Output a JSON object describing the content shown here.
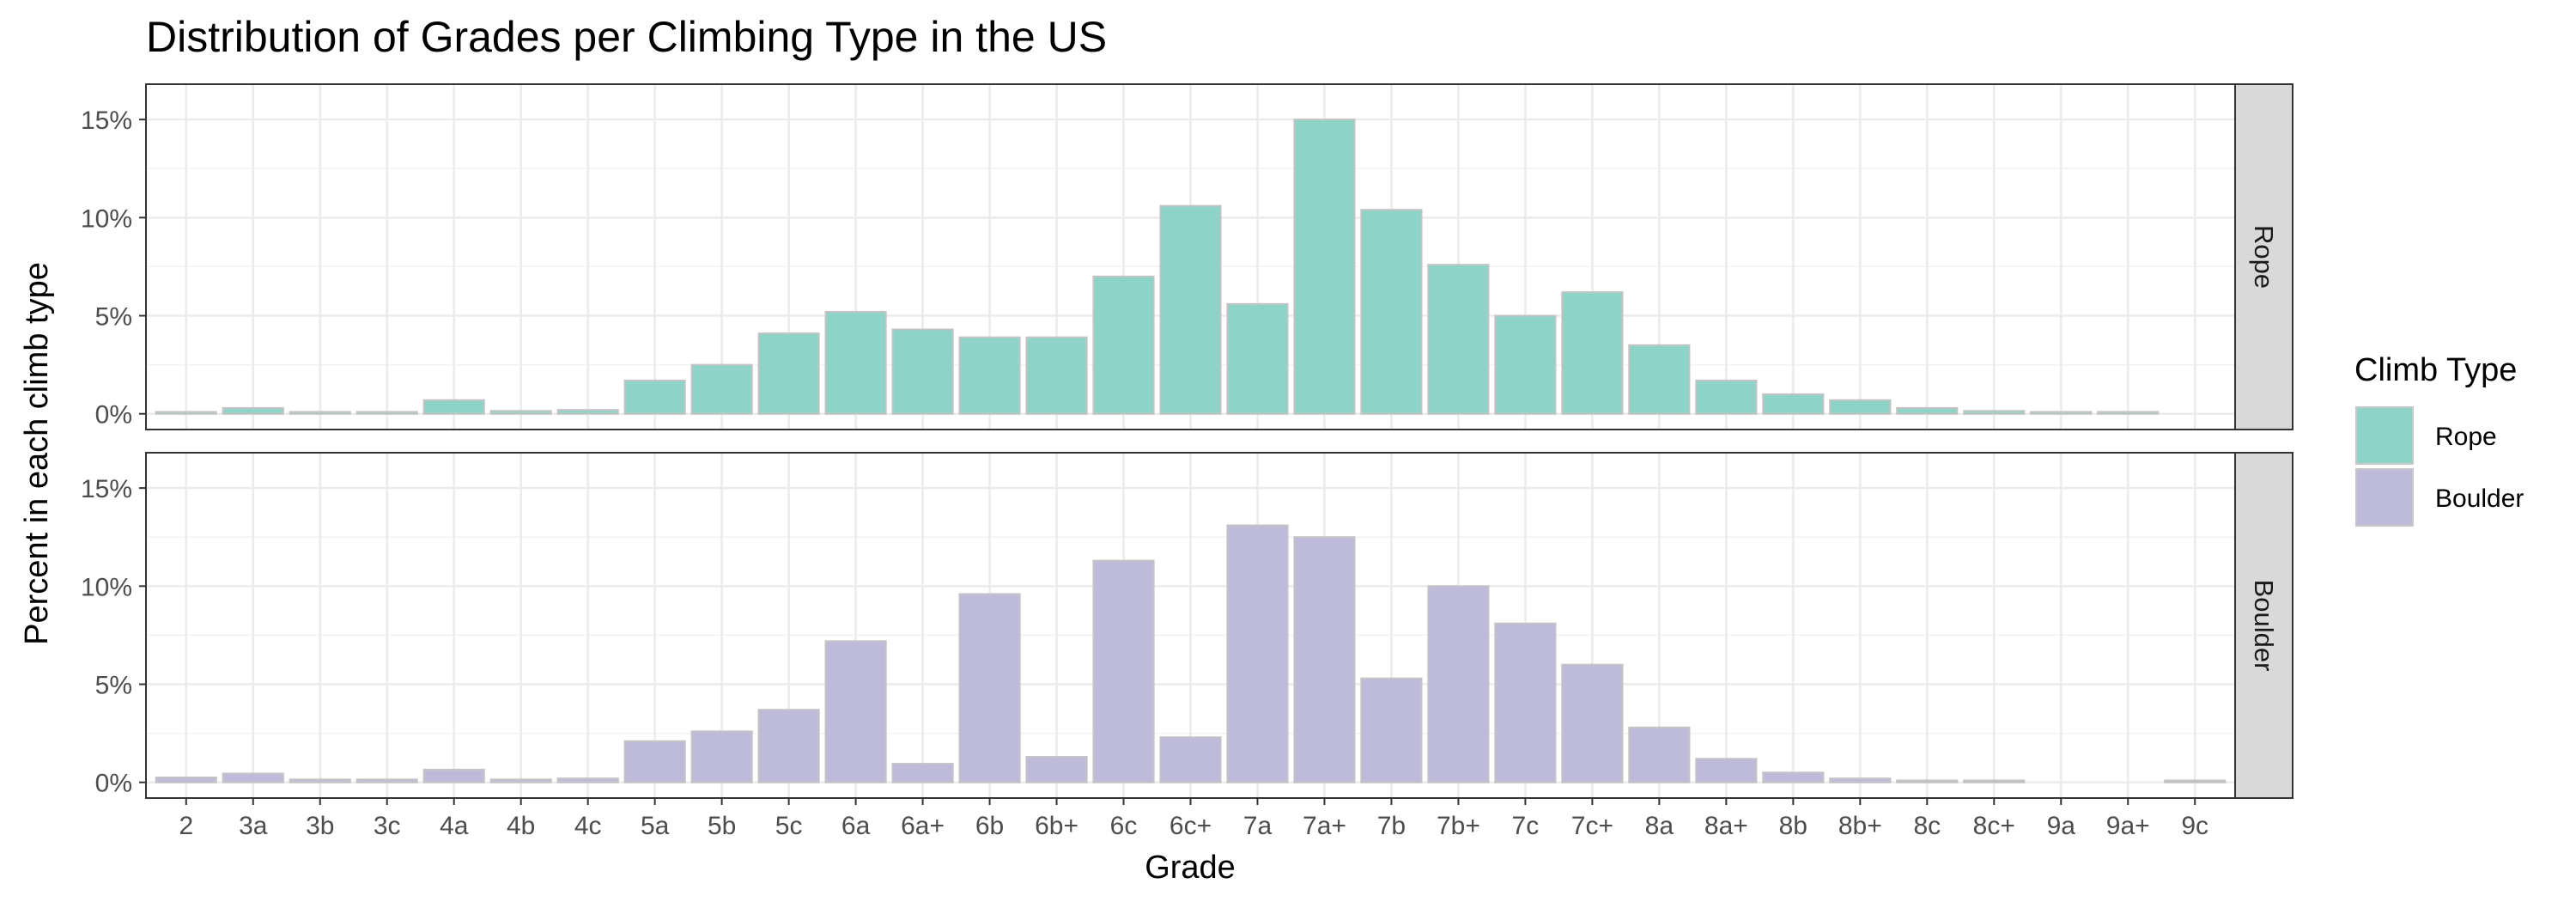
{
  "chart_data": {
    "type": "bar",
    "title": "Distribution of Grades per Climbing Type in the US",
    "xlabel": "Grade",
    "ylabel": "Percent in each climb type",
    "ylim": [
      0,
      16
    ],
    "y_ticks": [
      0,
      5,
      10,
      15
    ],
    "y_tick_labels": [
      "0%",
      "5%",
      "10%",
      "15%"
    ],
    "categories": [
      "2",
      "3a",
      "3b",
      "3c",
      "4a",
      "4b",
      "4c",
      "5a",
      "5b",
      "5c",
      "6a",
      "6a+",
      "6b",
      "6b+",
      "6c",
      "6c+",
      "7a",
      "7a+",
      "7b",
      "7b+",
      "7c",
      "7c+",
      "8a",
      "8a+",
      "8b",
      "8b+",
      "8c",
      "8c+",
      "9a",
      "9a+",
      "9c"
    ],
    "legend": {
      "title": "Climb Type",
      "position": "right"
    },
    "grid": true,
    "series": [
      {
        "name": "Rope",
        "color": "#8DD3C7",
        "values": [
          0.1,
          0.3,
          0.1,
          0.1,
          0.7,
          0.15,
          0.2,
          1.7,
          2.5,
          4.1,
          5.2,
          4.3,
          3.9,
          3.9,
          7.0,
          10.6,
          5.6,
          15.0,
          10.4,
          7.6,
          5.0,
          6.2,
          3.5,
          1.7,
          1.0,
          0.7,
          0.3,
          0.15,
          0.1,
          0.1,
          0
        ]
      },
      {
        "name": "Boulder",
        "color": "#BEBADA",
        "values": [
          0.25,
          0.45,
          0.15,
          0.15,
          0.65,
          0.15,
          0.2,
          2.1,
          2.6,
          3.7,
          7.2,
          0.95,
          9.6,
          1.3,
          11.3,
          2.3,
          13.1,
          12.5,
          5.3,
          10.0,
          8.1,
          6.0,
          2.8,
          1.2,
          0.5,
          0.2,
          0.1,
          0.1,
          0,
          0,
          0.1
        ]
      }
    ]
  }
}
